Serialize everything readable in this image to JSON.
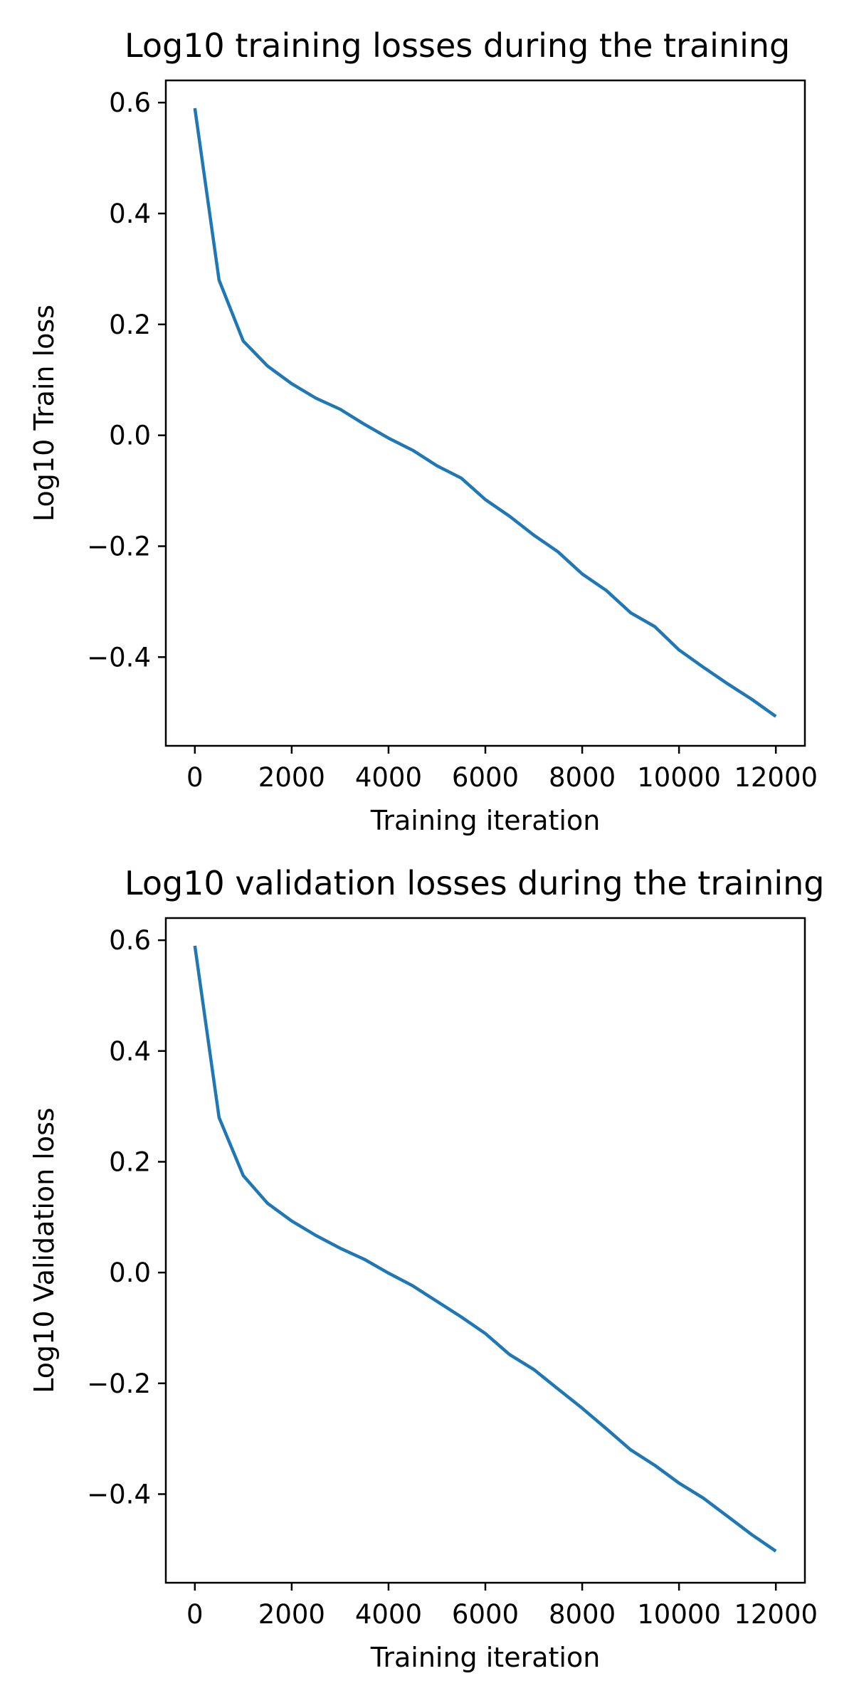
{
  "colors": {
    "series": "#1f77b4",
    "axis": "#000000",
    "background": "#ffffff"
  },
  "chart_data": [
    {
      "type": "line",
      "title": "Log10 training losses during the training",
      "xlabel": "Training iteration",
      "ylabel": "Log10 Train loss",
      "xlim": [
        -600,
        12600
      ],
      "ylim": [
        -0.56,
        0.64
      ],
      "xticks": [
        0,
        2000,
        4000,
        6000,
        8000,
        10000,
        12000
      ],
      "xtick_labels": [
        "0",
        "2000",
        "4000",
        "6000",
        "8000",
        "10000",
        "12000"
      ],
      "yticks": [
        0.6,
        0.4,
        0.2,
        0.0,
        -0.2,
        -0.4
      ],
      "ytick_labels": [
        "0.6",
        "0.4",
        "0.2",
        "0.0",
        "−0.2",
        "−0.4"
      ],
      "grid": false,
      "series": [
        {
          "x": [
            0,
            500,
            1000,
            1500,
            2000,
            2500,
            3000,
            3500,
            4000,
            4500,
            5000,
            5500,
            6000,
            6500,
            7000,
            7500,
            8000,
            8500,
            9000,
            9500,
            10000,
            10500,
            11000,
            11500,
            12000
          ],
          "y": [
            0.59,
            0.28,
            0.17,
            0.125,
            0.093,
            0.067,
            0.047,
            0.02,
            -0.005,
            -0.027,
            -0.055,
            -0.077,
            -0.116,
            -0.146,
            -0.18,
            -0.21,
            -0.25,
            -0.28,
            -0.32,
            -0.345,
            -0.387,
            -0.418,
            -0.448,
            -0.476,
            -0.507
          ]
        }
      ]
    },
    {
      "type": "line",
      "title": "Log10 validation losses during the training",
      "xlabel": "Training iteration",
      "ylabel": "Log10 Validation loss",
      "xlim": [
        -600,
        12600
      ],
      "ylim": [
        -0.56,
        0.64
      ],
      "xticks": [
        0,
        2000,
        4000,
        6000,
        8000,
        10000,
        12000
      ],
      "xtick_labels": [
        "0",
        "2000",
        "4000",
        "6000",
        "8000",
        "10000",
        "12000"
      ],
      "yticks": [
        0.6,
        0.4,
        0.2,
        0.0,
        -0.2,
        -0.4
      ],
      "ytick_labels": [
        "0.6",
        "0.4",
        "0.2",
        "0.0",
        "−0.2",
        "−0.4"
      ],
      "grid": false,
      "series": [
        {
          "x": [
            0,
            500,
            1000,
            1500,
            2000,
            2500,
            3000,
            3500,
            4000,
            4500,
            5000,
            5500,
            6000,
            6500,
            7000,
            7500,
            8000,
            8500,
            9000,
            9500,
            10000,
            10500,
            11000,
            11500,
            12000
          ],
          "y": [
            0.59,
            0.28,
            0.175,
            0.125,
            0.093,
            0.067,
            0.044,
            0.024,
            -0.001,
            -0.024,
            -0.052,
            -0.08,
            -0.11,
            -0.148,
            -0.175,
            -0.21,
            -0.245,
            -0.282,
            -0.32,
            -0.348,
            -0.38,
            -0.407,
            -0.44,
            -0.473,
            -0.503
          ]
        }
      ]
    }
  ]
}
